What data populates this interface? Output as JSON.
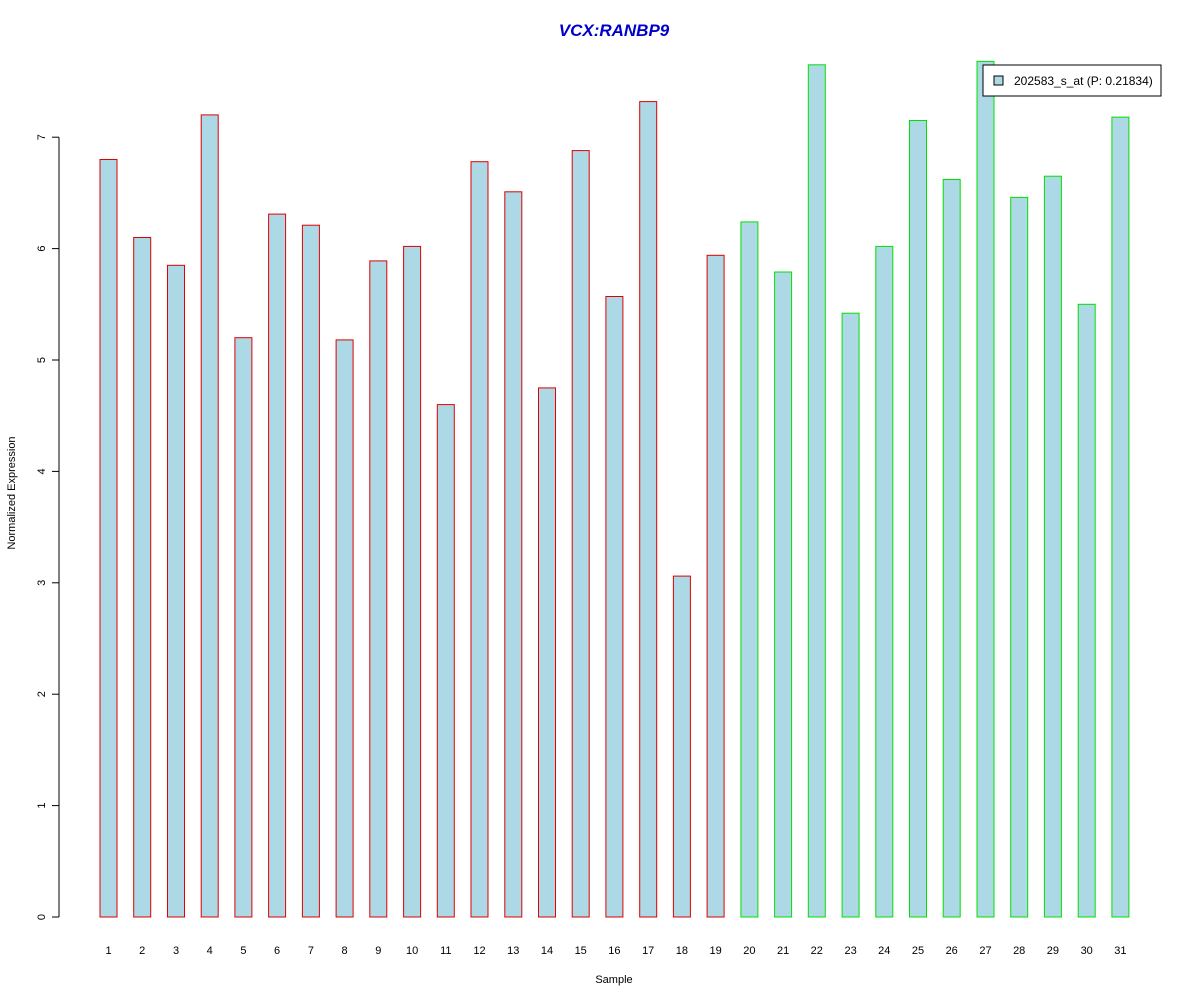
{
  "chart_data": {
    "type": "bar",
    "title": "VCX:RANBP9",
    "xlabel": "Sample",
    "ylabel": "Normalized Expression",
    "categories": [
      "1",
      "2",
      "3",
      "4",
      "5",
      "6",
      "7",
      "8",
      "9",
      "10",
      "11",
      "12",
      "13",
      "14",
      "15",
      "16",
      "17",
      "18",
      "19",
      "20",
      "21",
      "22",
      "23",
      "24",
      "25",
      "26",
      "27",
      "28",
      "29",
      "30",
      "31"
    ],
    "series": [
      {
        "name": "202583_s_at (P: 0.21834)",
        "values": [
          6.8,
          6.1,
          5.85,
          7.2,
          5.2,
          6.31,
          6.21,
          5.18,
          5.89,
          6.02,
          4.6,
          6.78,
          6.51,
          4.75,
          6.88,
          5.57,
          7.32,
          3.06,
          5.94,
          6.24,
          5.79,
          7.65,
          5.42,
          6.02,
          7.15,
          6.62,
          7.68,
          6.46,
          6.65,
          5.5,
          7.18
        ]
      }
    ],
    "groups": [
      {
        "samples": [
          1,
          19
        ],
        "border_color": "#e00000"
      },
      {
        "samples": [
          20,
          31
        ],
        "border_color": "#00e000"
      }
    ],
    "ylim": [
      0,
      7.7
    ],
    "yticks": [
      0,
      1,
      2,
      3,
      4,
      5,
      6,
      7
    ],
    "bar_fill_color": "#add8e6",
    "title_color": "#0000cc",
    "legend_position": "top-right",
    "grid": false
  }
}
